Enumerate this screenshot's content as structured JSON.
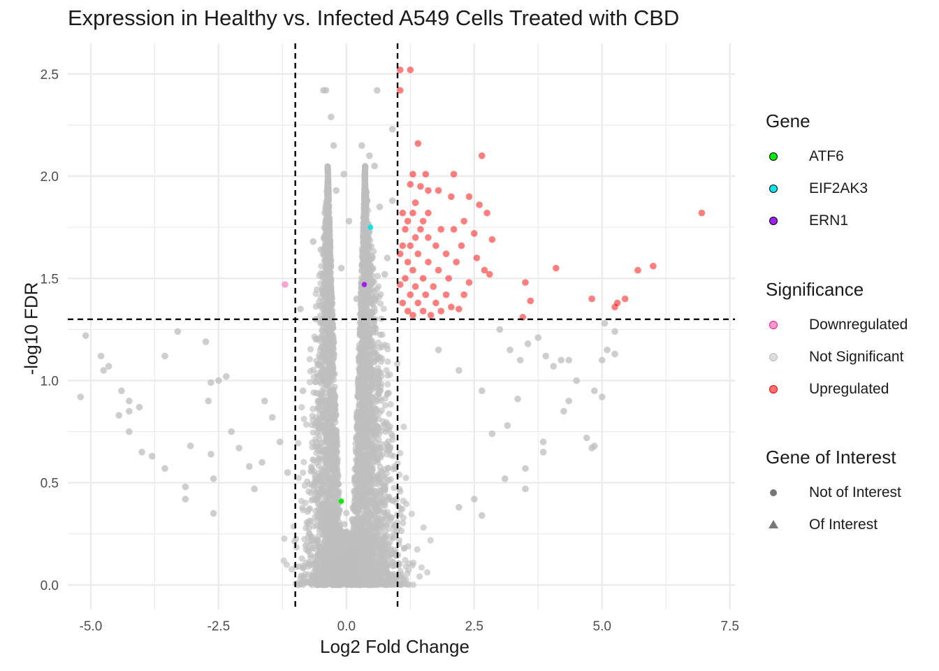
{
  "chart_data": {
    "type": "scatter",
    "title": "Expression in Healthy vs. Infected A549 Cells Treated with CBD",
    "xlabel": "Log2 Fold Change",
    "ylabel": "-log10 FDR",
    "xlim": [
      -5.45,
      7.6
    ],
    "ylim": [
      -0.12,
      2.65
    ],
    "xticks": [
      -5.0,
      -2.5,
      0.0,
      2.5,
      5.0,
      7.5
    ],
    "xtick_labels": [
      "-5.0",
      "-2.5",
      "0.0",
      "2.5",
      "5.0",
      "7.5"
    ],
    "yticks": [
      0.0,
      0.5,
      1.0,
      1.5,
      2.0,
      2.5
    ],
    "ytick_labels": [
      "0.0",
      "0.5",
      "1.0",
      "1.5",
      "2.0",
      "2.5"
    ],
    "grid": true,
    "legend_position": "right",
    "thresholds": {
      "log2fc": [
        -1,
        1
      ],
      "neg_log10_fdr": 1.3
    },
    "colors": {
      "not_significant": "#bebebe",
      "upregulated": "#ff0000",
      "downregulated": "#ff69b4",
      "ATF6": "#00ee00",
      "EIF2AK3": "#00e5ee",
      "ERN1": "#a020f0",
      "threshold_line": "#000000",
      "grid": "#ebebeb"
    },
    "series": [
      {
        "name": "Upregulated",
        "points": [
          [
            1.05,
            2.52
          ],
          [
            1.25,
            2.52
          ],
          [
            1.05,
            2.42
          ],
          [
            1.4,
            2.16
          ],
          [
            2.65,
            2.1
          ],
          [
            1.3,
            2.01
          ],
          [
            1.55,
            2.01
          ],
          [
            2.1,
            2.01
          ],
          [
            1.25,
            1.96
          ],
          [
            1.45,
            1.95
          ],
          [
            1.6,
            1.93
          ],
          [
            1.8,
            1.93
          ],
          [
            2.05,
            1.9
          ],
          [
            2.4,
            1.9
          ],
          [
            1.35,
            1.87
          ],
          [
            2.6,
            1.86
          ],
          [
            1.1,
            1.82
          ],
          [
            1.3,
            1.82
          ],
          [
            1.6,
            1.82
          ],
          [
            2.75,
            1.82
          ],
          [
            6.95,
            1.82
          ],
          [
            1.2,
            1.78
          ],
          [
            1.5,
            1.78
          ],
          [
            2.3,
            1.78
          ],
          [
            1.15,
            1.74
          ],
          [
            1.45,
            1.74
          ],
          [
            1.85,
            1.74
          ],
          [
            2.1,
            1.74
          ],
          [
            1.35,
            1.7
          ],
          [
            1.6,
            1.7
          ],
          [
            2.5,
            1.72
          ],
          [
            1.1,
            1.66
          ],
          [
            1.25,
            1.66
          ],
          [
            1.75,
            1.66
          ],
          [
            2.25,
            1.66
          ],
          [
            2.85,
            1.69
          ],
          [
            1.05,
            1.62
          ],
          [
            1.4,
            1.62
          ],
          [
            1.95,
            1.62
          ],
          [
            2.55,
            1.6
          ],
          [
            1.2,
            1.58
          ],
          [
            1.6,
            1.58
          ],
          [
            2.15,
            1.58
          ],
          [
            4.1,
            1.55
          ],
          [
            6.0,
            1.56
          ],
          [
            1.3,
            1.54
          ],
          [
            1.8,
            1.54
          ],
          [
            2.7,
            1.54
          ],
          [
            5.7,
            1.54
          ],
          [
            1.15,
            1.5
          ],
          [
            1.5,
            1.5
          ],
          [
            2.0,
            1.5
          ],
          [
            2.8,
            1.52
          ],
          [
            1.05,
            1.47
          ],
          [
            1.35,
            1.46
          ],
          [
            1.7,
            1.46
          ],
          [
            2.4,
            1.48
          ],
          [
            3.5,
            1.48
          ],
          [
            1.25,
            1.42
          ],
          [
            1.55,
            1.42
          ],
          [
            1.95,
            1.42
          ],
          [
            2.3,
            1.42
          ],
          [
            1.1,
            1.38
          ],
          [
            1.4,
            1.38
          ],
          [
            1.75,
            1.38
          ],
          [
            2.05,
            1.36
          ],
          [
            3.6,
            1.39
          ],
          [
            4.8,
            1.4
          ],
          [
            5.3,
            1.38
          ],
          [
            5.45,
            1.4
          ],
          [
            1.2,
            1.34
          ],
          [
            1.5,
            1.34
          ],
          [
            1.85,
            1.34
          ],
          [
            2.2,
            1.35
          ],
          [
            5.25,
            1.36
          ],
          [
            1.3,
            1.32
          ],
          [
            1.65,
            1.32
          ],
          [
            3.45,
            1.31
          ]
        ]
      },
      {
        "name": "Downregulated",
        "points": [
          [
            -1.2,
            1.47
          ]
        ]
      },
      {
        "name": "Not Significant",
        "points": [
          [
            -5.1,
            1.22
          ],
          [
            -4.8,
            1.12
          ],
          [
            -4.75,
            1.05
          ],
          [
            -4.65,
            1.07
          ],
          [
            -4.4,
            0.95
          ],
          [
            -4.25,
            0.9
          ],
          [
            -4.25,
            0.85
          ],
          [
            -4.05,
            0.87
          ],
          [
            -4.45,
            0.83
          ],
          [
            -4.25,
            0.75
          ],
          [
            -4.0,
            0.65
          ],
          [
            -3.8,
            0.63
          ],
          [
            -5.2,
            0.92
          ],
          [
            -3.55,
            0.57
          ],
          [
            -3.55,
            1.12
          ],
          [
            -3.15,
            0.48
          ],
          [
            -3.15,
            0.42
          ],
          [
            -3.05,
            0.68
          ],
          [
            -3.3,
            1.24
          ],
          [
            -2.75,
            1.19
          ],
          [
            -2.65,
            0.99
          ],
          [
            -2.5,
            1.0
          ],
          [
            -2.35,
            1.02
          ],
          [
            -2.6,
            0.35
          ],
          [
            -2.6,
            0.52
          ],
          [
            -2.7,
            0.9
          ],
          [
            -2.65,
            0.64
          ],
          [
            -2.25,
            0.75
          ],
          [
            -2.1,
            0.67
          ],
          [
            -1.9,
            0.58
          ],
          [
            -1.8,
            0.47
          ],
          [
            -1.65,
            0.6
          ],
          [
            -1.6,
            0.9
          ],
          [
            -1.45,
            0.82
          ],
          [
            -1.3,
            0.7
          ],
          [
            -1.15,
            0.55
          ],
          [
            -0.65,
            1.68
          ],
          [
            -0.5,
            1.64
          ],
          [
            -0.45,
            2.42
          ],
          [
            -0.4,
            2.42
          ],
          [
            -0.3,
            2.29
          ],
          [
            -0.25,
            2.15
          ],
          [
            -0.45,
            1.0
          ],
          [
            -0.6,
            1.3
          ],
          [
            -0.9,
            1.35
          ],
          [
            -0.85,
            0.95
          ],
          [
            1.8,
            1.15
          ],
          [
            2.2,
            1.05
          ],
          [
            2.65,
            0.95
          ],
          [
            3.0,
            1.25
          ],
          [
            3.2,
            1.15
          ],
          [
            3.4,
            1.1
          ],
          [
            3.55,
            1.18
          ],
          [
            3.75,
            1.21
          ],
          [
            3.9,
            1.12
          ],
          [
            4.05,
            1.07
          ],
          [
            4.2,
            1.1
          ],
          [
            4.35,
            1.1
          ],
          [
            4.5,
            1.0
          ],
          [
            4.7,
            0.72
          ],
          [
            4.8,
            0.67
          ],
          [
            4.25,
            0.85
          ],
          [
            4.35,
            0.9
          ],
          [
            3.85,
            0.65
          ],
          [
            3.85,
            0.7
          ],
          [
            3.5,
            0.47
          ],
          [
            3.5,
            0.57
          ],
          [
            3.1,
            0.52
          ],
          [
            2.85,
            0.74
          ],
          [
            2.5,
            0.42
          ],
          [
            2.2,
            0.38
          ],
          [
            2.65,
            0.34
          ],
          [
            3.15,
            0.78
          ],
          [
            3.35,
            0.91
          ],
          [
            5.0,
            0.92
          ],
          [
            5.0,
            1.1
          ],
          [
            5.05,
            1.28
          ],
          [
            5.1,
            1.15
          ],
          [
            5.25,
            1.24
          ],
          [
            5.25,
            1.13
          ],
          [
            4.85,
            0.95
          ],
          [
            4.85,
            0.68
          ],
          [
            0.6,
            2.42
          ],
          [
            0.3,
            2.15
          ],
          [
            0.45,
            2.1
          ],
          [
            0.55,
            2.05
          ],
          [
            0.9,
            2.23
          ],
          [
            0.9,
            1.88
          ],
          [
            -0.05,
            2.01
          ],
          [
            -0.2,
            1.93
          ],
          [
            0.05,
            1.78
          ],
          [
            -0.1,
            1.55
          ],
          [
            0.2,
            1.4
          ],
          [
            0.8,
            1.6
          ],
          [
            -0.3,
            1.45
          ],
          [
            0.65,
            1.85
          ],
          [
            0.75,
            1.52
          ]
        ]
      },
      {
        "name": "ATF6",
        "points": [
          [
            -0.1,
            0.41
          ]
        ]
      },
      {
        "name": "EIF2AK3",
        "points": [
          [
            0.47,
            1.75
          ]
        ]
      },
      {
        "name": "ERN1",
        "points": [
          [
            0.35,
            1.47
          ]
        ]
      }
    ]
  },
  "legend": {
    "gene": {
      "title": "Gene",
      "items": [
        "ATF6",
        "EIF2AK3",
        "ERN1"
      ]
    },
    "significance": {
      "title": "Significance",
      "items": [
        "Downregulated",
        "Not Significant",
        "Upregulated"
      ]
    },
    "interest": {
      "title": "Gene of Interest",
      "items": [
        "Not of Interest",
        "Of Interest"
      ],
      "shapes": [
        "circle",
        "triangle"
      ]
    }
  }
}
